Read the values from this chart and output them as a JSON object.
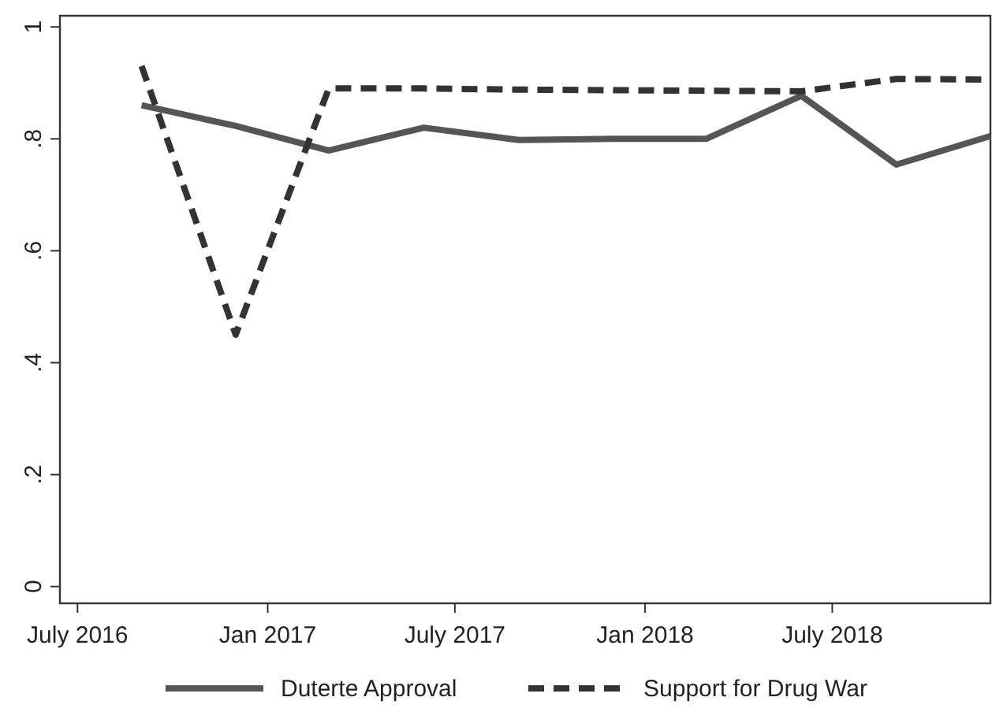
{
  "chart_data": {
    "type": "line",
    "x": [
      "2016-09",
      "2016-12",
      "2017-03",
      "2017-06",
      "2017-09",
      "2017-12",
      "2018-03",
      "2018-06",
      "2018-09",
      "2018-12"
    ],
    "series": [
      {
        "name": "Duterte Approval",
        "color": "#555555",
        "line_style": "solid",
        "values": [
          0.86,
          0.823,
          0.779,
          0.82,
          0.798,
          0.8,
          0.8,
          0.877,
          0.754,
          0.805
        ]
      },
      {
        "name": "Support for Drug War",
        "color": "#333333",
        "line_style": "dashed",
        "values": [
          0.93,
          0.45,
          0.89,
          0.89,
          0.888,
          0.887,
          0.886,
          0.885,
          0.907,
          0.906
        ]
      }
    ],
    "xlim": [
      "2016-06-14",
      "2018-12-01"
    ],
    "xticks": [
      {
        "value": "2016-07-01",
        "label": "July 2016"
      },
      {
        "value": "2017-01-01",
        "label": "Jan 2017"
      },
      {
        "value": "2017-07-01",
        "label": "July 2017"
      },
      {
        "value": "2018-01-01",
        "label": "Jan 2018"
      },
      {
        "value": "2018-07-01",
        "label": "July 2018"
      }
    ],
    "ylim": [
      -0.03,
      1.02
    ],
    "yticks": [
      0,
      {
        "value": 0.2,
        "label": ".2"
      },
      {
        "value": 0.4,
        "label": ".4"
      },
      {
        "value": 0.6,
        "label": ".6"
      },
      {
        "value": 0.8,
        "label": ".8"
      },
      1
    ],
    "grid": false,
    "legend": "bottom",
    "marker": "none"
  }
}
